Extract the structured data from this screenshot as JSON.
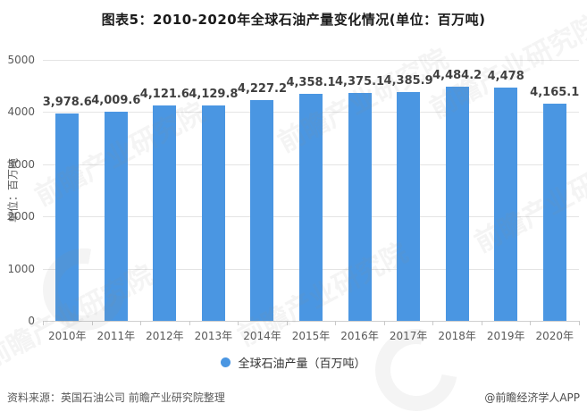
{
  "title": "图表5：2010-2020年全球石油产量变化情况(单位：百万吨)",
  "chart_data": {
    "type": "bar",
    "title": "图表5：2010-2020年全球石油产量变化情况(单位：百万吨)",
    "categories": [
      "2010年",
      "2011年",
      "2012年",
      "2013年",
      "2014年",
      "2015年",
      "2016年",
      "2017年",
      "2018年",
      "2019年",
      "2020年"
    ],
    "values": [
      3978.6,
      4009.6,
      4121.6,
      4129.8,
      4227.2,
      4358.1,
      4375.1,
      4385.9,
      4484.2,
      4478,
      4165.1
    ],
    "value_labels": [
      "3,978.6",
      "4,009.6",
      "4,121.6",
      "4,129.8",
      "4,227.2",
      "4,358.1",
      "4,375.1",
      "4,385.9",
      "4,484.2",
      "4,478",
      "4,165.1"
    ],
    "xlabel": "",
    "ylabel": "单位：百万吨",
    "ylim": [
      0,
      5000
    ],
    "yticks": [
      0,
      1000,
      2000,
      3000,
      4000,
      5000
    ],
    "grid": true,
    "legend": [
      "全球石油产量（百万吨）"
    ],
    "legend_position": "bottom",
    "bar_color": "#4a96e2"
  },
  "legend": {
    "series_label": "全球石油产量（百万吨）"
  },
  "footer": {
    "source": "资料来源：英国石油公司 前瞻产业研究院整理",
    "credit": "@前瞻经济学人APP"
  },
  "watermark": {
    "text": "前瞻产业研究院"
  }
}
